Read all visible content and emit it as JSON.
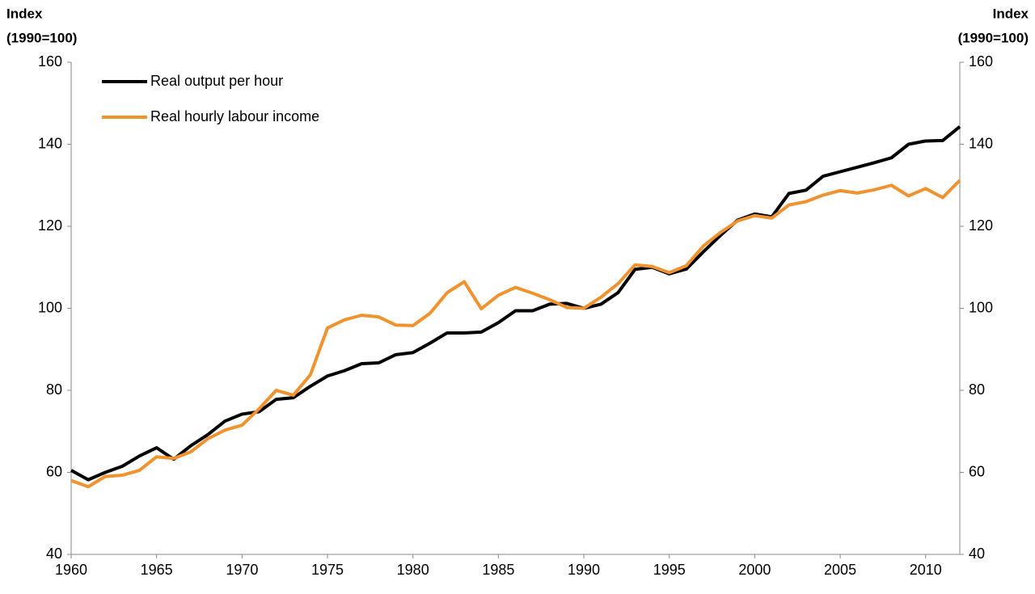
{
  "chart_data": {
    "type": "line",
    "ylabel": [
      "Index",
      "(1990=100)"
    ],
    "y2label": [
      "Index",
      "(1990=100)"
    ],
    "x": [
      1960,
      1961,
      1962,
      1963,
      1964,
      1965,
      1966,
      1967,
      1968,
      1969,
      1970,
      1971,
      1972,
      1973,
      1974,
      1975,
      1976,
      1977,
      1978,
      1979,
      1980,
      1981,
      1982,
      1983,
      1984,
      1985,
      1986,
      1987,
      1988,
      1989,
      1990,
      1991,
      1992,
      1993,
      1994,
      1995,
      1996,
      1997,
      1998,
      1999,
      2000,
      2001,
      2002,
      2003,
      2004,
      2005,
      2006,
      2007,
      2008,
      2009,
      2010,
      2011,
      2012
    ],
    "series": [
      {
        "name": "Real output per hour",
        "color": "#000000",
        "values": [
          60.5,
          58.2,
          60,
          61.5,
          64,
          66,
          63.2,
          66.5,
          69.2,
          72.5,
          74.2,
          74.8,
          77.8,
          78.2,
          81,
          83.5,
          84.8,
          86.5,
          86.7,
          88.7,
          89.2,
          91.5,
          94,
          94,
          94.2,
          96.5,
          99.4,
          99.4,
          101,
          101.2,
          100,
          101,
          103.8,
          109.5,
          110,
          108.4,
          109.6,
          113.8,
          117.8,
          121.5,
          123,
          122.3,
          128,
          128.8,
          132.2,
          133.3,
          134.4,
          135.5,
          136.7,
          140,
          140.8,
          140.9,
          144.3
        ]
      },
      {
        "name": "Real hourly labour income",
        "color": "#f0922e",
        "values": [
          58,
          56.5,
          59,
          59.3,
          60.5,
          63.8,
          63.4,
          65,
          68.2,
          70.3,
          71.5,
          75.5,
          80,
          78.8,
          83.8,
          95.2,
          97.2,
          98.3,
          97.9,
          95.9,
          95.8,
          98.8,
          103.8,
          106.5,
          99.9,
          103.2,
          105.1,
          103.7,
          102.1,
          100.2,
          100,
          102.7,
          106,
          110.6,
          110.2,
          108.7,
          110.4,
          115.2,
          118.5,
          121.3,
          122.6,
          122,
          125.2,
          126,
          127.6,
          128.7,
          128.1,
          128.9,
          130,
          127.4,
          129.2,
          127,
          131.2
        ]
      }
    ],
    "xlim": [
      1960,
      2012
    ],
    "xticks": [
      1960,
      1965,
      1970,
      1975,
      1980,
      1985,
      1990,
      1995,
      2000,
      2005,
      2010
    ],
    "ylim": [
      40,
      160
    ],
    "yticks": [
      40,
      60,
      80,
      100,
      120,
      140,
      160
    ],
    "y2lim": [
      40,
      160
    ],
    "y2ticks": [
      40,
      60,
      80,
      100,
      120,
      140,
      160
    ],
    "grid": false,
    "legend": "top-left"
  }
}
